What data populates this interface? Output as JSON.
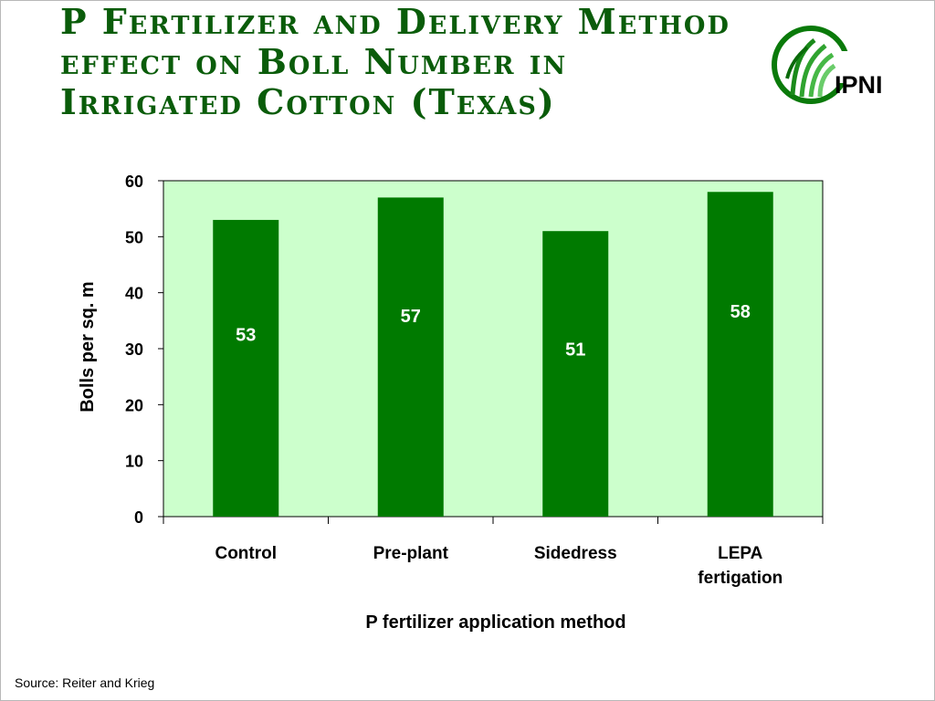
{
  "slide": {
    "title": "P Fertilizer and Delivery Method effect on Boll Number in Irrigated Cotton (Texas)",
    "logo_text": "IPNI",
    "source": "Source: Reiter and Krieg"
  },
  "colors": {
    "title": "#0a5c0a",
    "bar": "#007a00",
    "plot_background": "#ccffcc",
    "data_label": "#ffffff"
  },
  "chart_data": {
    "type": "bar",
    "categories": [
      "Control",
      "Pre-plant",
      "Sidedress",
      "LEPA fertigation"
    ],
    "values": [
      53,
      57,
      51,
      58
    ],
    "data_labels": [
      "53",
      "57",
      "51",
      "58"
    ],
    "xlabel": "P fertilizer application method",
    "ylabel": "Bolls per sq. m",
    "ylim": [
      0,
      60
    ],
    "yticks": [
      0,
      10,
      20,
      30,
      40,
      50,
      60
    ],
    "grid": false,
    "legend": "none"
  }
}
